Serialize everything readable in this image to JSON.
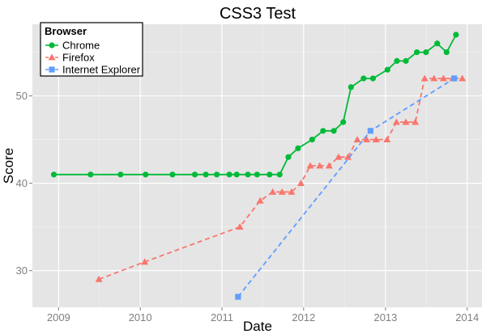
{
  "chart_data": {
    "type": "line",
    "title": "CSS3 Test",
    "xlabel": "Date",
    "ylabel": "Score",
    "xlim": [
      "2008-09-06",
      "2014-03-08"
    ],
    "ylim": [
      25.8,
      58.2
    ],
    "x_ticks": [
      {
        "date": "2009-01-01",
        "label": "2009"
      },
      {
        "date": "2010-01-01",
        "label": "2010"
      },
      {
        "date": "2011-01-01",
        "label": "2011"
      },
      {
        "date": "2012-01-01",
        "label": "2012"
      },
      {
        "date": "2013-01-01",
        "label": "2013"
      },
      {
        "date": "2014-01-01",
        "label": "2014"
      }
    ],
    "y_ticks": [
      30,
      40,
      50
    ],
    "grid": true,
    "legend": {
      "title": "Browser",
      "placement": "top-left"
    },
    "series": [
      {
        "name": "Chrome",
        "color": "#00BA38",
        "marker": "circle",
        "line_style": "solid",
        "points": [
          {
            "x": "2008-12-11",
            "y": 41
          },
          {
            "x": "2009-05-24",
            "y": 41
          },
          {
            "x": "2009-10-05",
            "y": 41
          },
          {
            "x": "2010-01-25",
            "y": 41
          },
          {
            "x": "2010-05-25",
            "y": 41
          },
          {
            "x": "2010-09-02",
            "y": 41
          },
          {
            "x": "2010-10-21",
            "y": 41
          },
          {
            "x": "2010-12-09",
            "y": 41
          },
          {
            "x": "2011-02-03",
            "y": 41
          },
          {
            "x": "2011-03-08",
            "y": 41
          },
          {
            "x": "2011-04-27",
            "y": 41
          },
          {
            "x": "2011-06-07",
            "y": 41
          },
          {
            "x": "2011-08-02",
            "y": 41
          },
          {
            "x": "2011-09-16",
            "y": 41
          },
          {
            "x": "2011-10-25",
            "y": 43
          },
          {
            "x": "2011-12-07",
            "y": 44
          },
          {
            "x": "2012-02-08",
            "y": 45
          },
          {
            "x": "2012-03-28",
            "y": 46
          },
          {
            "x": "2012-05-15",
            "y": 46
          },
          {
            "x": "2012-06-26",
            "y": 47
          },
          {
            "x": "2012-07-31",
            "y": 51
          },
          {
            "x": "2012-09-25",
            "y": 52
          },
          {
            "x": "2012-11-06",
            "y": 52
          },
          {
            "x": "2013-01-10",
            "y": 53
          },
          {
            "x": "2013-02-21",
            "y": 54
          },
          {
            "x": "2013-04-02",
            "y": 54
          },
          {
            "x": "2013-05-21",
            "y": 55
          },
          {
            "x": "2013-07-01",
            "y": 55
          },
          {
            "x": "2013-08-20",
            "y": 56
          },
          {
            "x": "2013-10-01",
            "y": 55
          },
          {
            "x": "2013-11-12",
            "y": 57
          }
        ]
      },
      {
        "name": "Firefox",
        "color": "#F8766D",
        "marker": "triangle",
        "line_style": "dashed",
        "points": [
          {
            "x": "2009-06-30",
            "y": 29
          },
          {
            "x": "2010-01-21",
            "y": 31
          },
          {
            "x": "2011-03-22",
            "y": 35
          },
          {
            "x": "2011-06-21",
            "y": 38
          },
          {
            "x": "2011-08-16",
            "y": 39
          },
          {
            "x": "2011-09-27",
            "y": 39
          },
          {
            "x": "2011-11-08",
            "y": 39
          },
          {
            "x": "2011-12-20",
            "y": 40
          },
          {
            "x": "2012-01-31",
            "y": 42
          },
          {
            "x": "2012-03-13",
            "y": 42
          },
          {
            "x": "2012-04-24",
            "y": 42
          },
          {
            "x": "2012-06-05",
            "y": 43
          },
          {
            "x": "2012-07-17",
            "y": 43
          },
          {
            "x": "2012-08-28",
            "y": 45
          },
          {
            "x": "2012-10-09",
            "y": 45
          },
          {
            "x": "2012-11-20",
            "y": 45
          },
          {
            "x": "2013-01-08",
            "y": 45
          },
          {
            "x": "2013-02-19",
            "y": 47
          },
          {
            "x": "2013-04-02",
            "y": 47
          },
          {
            "x": "2013-05-14",
            "y": 47
          },
          {
            "x": "2013-06-25",
            "y": 52
          },
          {
            "x": "2013-08-06",
            "y": 52
          },
          {
            "x": "2013-09-17",
            "y": 52
          },
          {
            "x": "2013-10-29",
            "y": 52
          },
          {
            "x": "2013-12-10",
            "y": 52
          }
        ]
      },
      {
        "name": "Internet Explorer",
        "color": "#619CFF",
        "marker": "square",
        "line_style": "dashed",
        "points": [
          {
            "x": "2011-03-14",
            "y": 27
          },
          {
            "x": "2012-10-26",
            "y": 46
          },
          {
            "x": "2013-11-04",
            "y": 52
          }
        ]
      }
    ]
  }
}
